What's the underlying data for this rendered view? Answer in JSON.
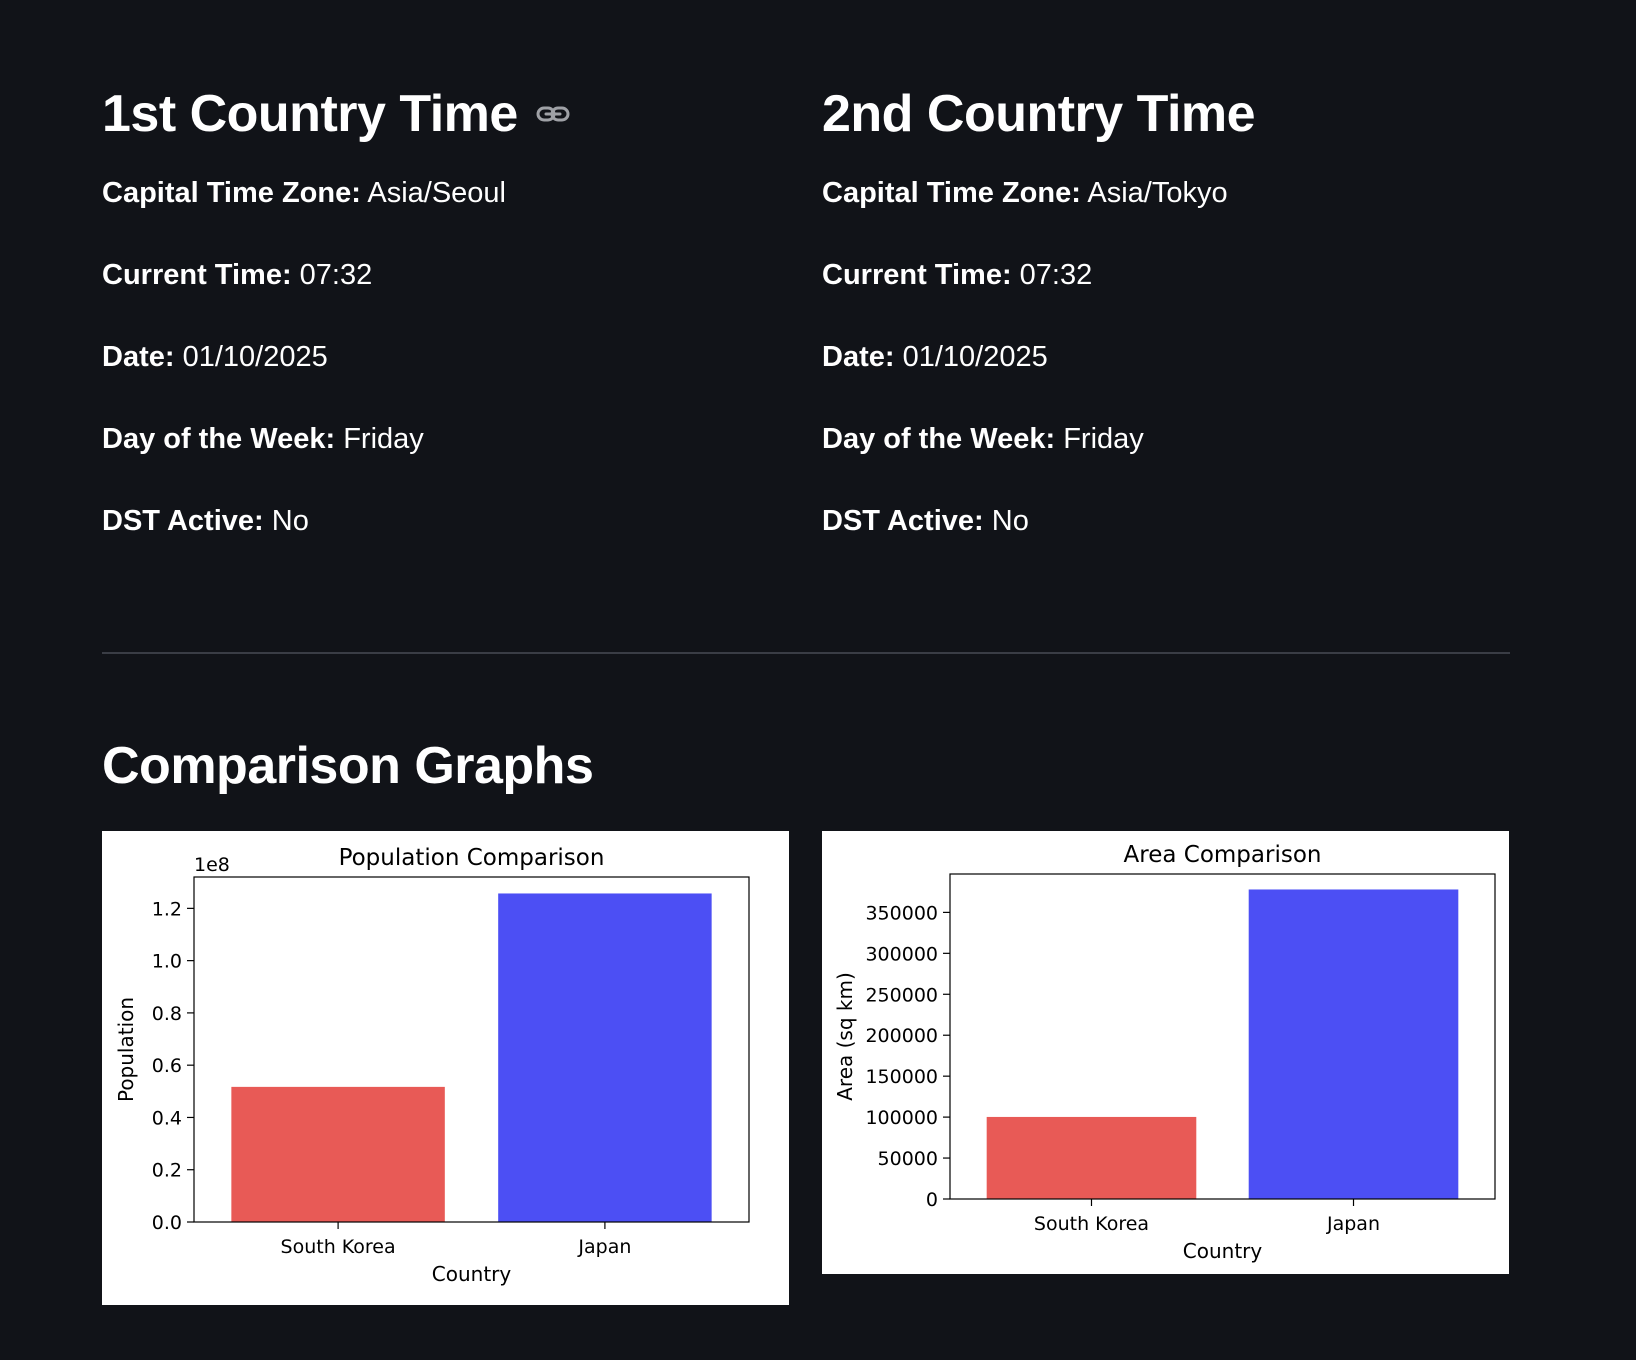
{
  "country1": {
    "heading": "1st Country Time",
    "rows": [
      {
        "label": "Capital Time Zone:",
        "value": "Asia/Seoul"
      },
      {
        "label": "Current Time:",
        "value": "07:32"
      },
      {
        "label": "Date:",
        "value": "01/10/2025"
      },
      {
        "label": "Day of the Week:",
        "value": "Friday"
      },
      {
        "label": "DST Active:",
        "value": "No"
      }
    ]
  },
  "country2": {
    "heading": "2nd Country Time",
    "rows": [
      {
        "label": "Capital Time Zone:",
        "value": "Asia/Tokyo"
      },
      {
        "label": "Current Time:",
        "value": "07:32"
      },
      {
        "label": "Date:",
        "value": "01/10/2025"
      },
      {
        "label": "Day of the Week:",
        "value": "Friday"
      },
      {
        "label": "DST Active:",
        "value": "No"
      }
    ]
  },
  "comparison": {
    "heading": "Comparison Graphs"
  },
  "icons": {
    "heading_anchor": "link-icon"
  },
  "colors": {
    "background": "#111318",
    "bar_south_korea": "#e85a56",
    "bar_japan": "#4c4ff4",
    "divider": "#3a3d45"
  },
  "chart_data": [
    {
      "type": "bar",
      "title": "Population Comparison",
      "xlabel": "Country",
      "ylabel": "Population",
      "offset_label": "1e8",
      "categories": [
        "South Korea",
        "Japan"
      ],
      "values": [
        51700000,
        125700000
      ],
      "colors": [
        "#e85a56",
        "#4c4ff4"
      ],
      "ylim": [
        0,
        132000000
      ],
      "yticks": [
        0,
        20000000,
        40000000,
        60000000,
        80000000,
        100000000,
        120000000
      ],
      "ytick_labels": [
        "0.0",
        "0.2",
        "0.4",
        "0.6",
        "0.8",
        "1.0",
        "1.2"
      ],
      "grid": false
    },
    {
      "type": "bar",
      "title": "Area Comparison",
      "xlabel": "Country",
      "ylabel": "Area (sq km)",
      "categories": [
        "South Korea",
        "Japan"
      ],
      "values": [
        100210,
        377975
      ],
      "colors": [
        "#e85a56",
        "#4c4ff4"
      ],
      "ylim": [
        0,
        396874
      ],
      "yticks": [
        0,
        50000,
        100000,
        150000,
        200000,
        250000,
        300000,
        350000
      ],
      "ytick_labels": [
        "0",
        "50000",
        "100000",
        "150000",
        "200000",
        "250000",
        "300000",
        "350000"
      ],
      "grid": false
    }
  ]
}
